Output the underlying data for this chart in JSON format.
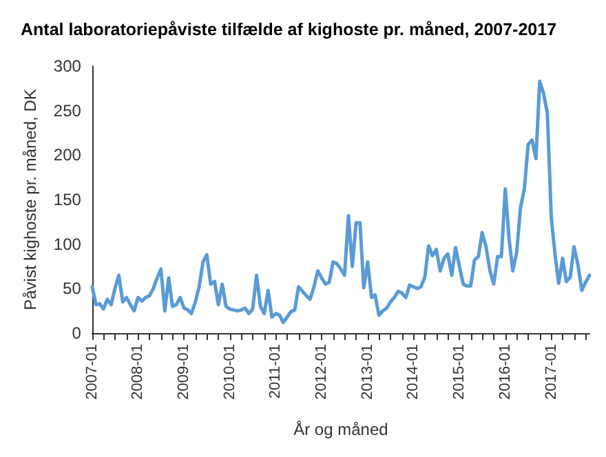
{
  "chart_data": {
    "type": "line",
    "title": "Antal laboratoriepåviste tilfælde af kighoste pr. måned, 2007-2017",
    "xlabel": "År og måned",
    "ylabel": "Påvist kighoste pr. måned, DK",
    "x": [
      "2007-01",
      "2007-02",
      "2007-03",
      "2007-04",
      "2007-05",
      "2007-06",
      "2007-07",
      "2007-08",
      "2007-09",
      "2007-10",
      "2007-11",
      "2007-12",
      "2008-01",
      "2008-02",
      "2008-03",
      "2008-04",
      "2008-05",
      "2008-06",
      "2008-07",
      "2008-08",
      "2008-09",
      "2008-10",
      "2008-11",
      "2008-12",
      "2009-01",
      "2009-02",
      "2009-03",
      "2009-04",
      "2009-05",
      "2009-06",
      "2009-07",
      "2009-08",
      "2009-09",
      "2009-10",
      "2009-11",
      "2009-12",
      "2010-01",
      "2010-02",
      "2010-03",
      "2010-04",
      "2010-05",
      "2010-06",
      "2010-07",
      "2010-08",
      "2010-09",
      "2010-10",
      "2010-11",
      "2010-12",
      "2011-01",
      "2011-02",
      "2011-03",
      "2011-04",
      "2011-05",
      "2011-06",
      "2011-07",
      "2011-08",
      "2011-09",
      "2011-10",
      "2011-11",
      "2011-12",
      "2012-01",
      "2012-02",
      "2012-03",
      "2012-04",
      "2012-05",
      "2012-06",
      "2012-07",
      "2012-08",
      "2012-09",
      "2012-10",
      "2012-11",
      "2012-12",
      "2013-01",
      "2013-02",
      "2013-03",
      "2013-04",
      "2013-05",
      "2013-06",
      "2013-07",
      "2013-08",
      "2013-09",
      "2013-10",
      "2013-11",
      "2013-12",
      "2014-01",
      "2014-02",
      "2014-03",
      "2014-04",
      "2014-05",
      "2014-06",
      "2014-07",
      "2014-08",
      "2014-09",
      "2014-10",
      "2014-11",
      "2014-12",
      "2015-01",
      "2015-02",
      "2015-03",
      "2015-04",
      "2015-05",
      "2015-06",
      "2015-07",
      "2015-08",
      "2015-09",
      "2015-10",
      "2015-11",
      "2015-12",
      "2016-01",
      "2016-02",
      "2016-03",
      "2016-04",
      "2016-05",
      "2016-06",
      "2016-07",
      "2016-08",
      "2016-09",
      "2016-10",
      "2016-11",
      "2016-12",
      "2017-01",
      "2017-02",
      "2017-03",
      "2017-04",
      "2017-05",
      "2017-06",
      "2017-07",
      "2017-08",
      "2017-09",
      "2017-10",
      "2017-11"
    ],
    "series": [
      {
        "color": "#5b9bd5",
        "values": [
          52,
          32,
          33,
          27,
          38,
          32,
          50,
          65,
          35,
          40,
          32,
          25,
          40,
          36,
          40,
          42,
          50,
          62,
          72,
          25,
          62,
          30,
          32,
          40,
          28,
          26,
          22,
          35,
          52,
          80,
          88,
          55,
          58,
          32,
          55,
          30,
          27,
          26,
          25,
          26,
          28,
          22,
          27,
          65,
          30,
          22,
          48,
          18,
          22,
          20,
          12,
          18,
          24,
          26,
          52,
          47,
          42,
          38,
          52,
          70,
          62,
          55,
          57,
          80,
          78,
          72,
          65,
          132,
          75,
          124,
          124,
          51,
          80,
          40,
          43,
          20,
          25,
          28,
          35,
          40,
          47,
          45,
          40,
          54,
          52,
          50,
          52,
          63,
          98,
          87,
          94,
          70,
          84,
          89,
          65,
          96,
          75,
          55,
          53,
          53,
          82,
          86,
          113,
          97,
          70,
          55,
          86,
          86,
          162,
          105,
          70,
          91,
          141,
          162,
          212,
          217,
          196,
          283,
          269,
          247,
          130,
          87,
          56,
          84,
          58,
          63,
          97,
          77,
          48,
          57,
          65
        ]
      }
    ],
    "xlim": [
      "2007-01",
      "2017-11"
    ],
    "xticks": [
      {
        "value": "2007-01",
        "label": "2007-01"
      },
      {
        "value": "2007-04",
        "label": null
      },
      {
        "value": "2007-07",
        "label": null
      },
      {
        "value": "2007-10",
        "label": null
      },
      {
        "value": "2008-01",
        "label": "2008-01"
      },
      {
        "value": "2008-04",
        "label": null
      },
      {
        "value": "2008-07",
        "label": null
      },
      {
        "value": "2008-10",
        "label": null
      },
      {
        "value": "2009-01",
        "label": "2009-01"
      },
      {
        "value": "2009-04",
        "label": null
      },
      {
        "value": "2009-07",
        "label": null
      },
      {
        "value": "2009-10",
        "label": null
      },
      {
        "value": "2010-01",
        "label": "2010-01"
      },
      {
        "value": "2010-04",
        "label": null
      },
      {
        "value": "2010-07",
        "label": null
      },
      {
        "value": "2010-10",
        "label": null
      },
      {
        "value": "2011-01",
        "label": "2011-01"
      },
      {
        "value": "2011-04",
        "label": null
      },
      {
        "value": "2011-07",
        "label": null
      },
      {
        "value": "2011-10",
        "label": null
      },
      {
        "value": "2012-01",
        "label": "2012-01"
      },
      {
        "value": "2012-04",
        "label": null
      },
      {
        "value": "2012-07",
        "label": null
      },
      {
        "value": "2012-10",
        "label": null
      },
      {
        "value": "2013-01",
        "label": "2013-01"
      },
      {
        "value": "2013-04",
        "label": null
      },
      {
        "value": "2013-07",
        "label": null
      },
      {
        "value": "2013-10",
        "label": null
      },
      {
        "value": "2014-01",
        "label": "2014-01"
      },
      {
        "value": "2014-04",
        "label": null
      },
      {
        "value": "2014-07",
        "label": null
      },
      {
        "value": "2014-10",
        "label": null
      },
      {
        "value": "2015-01",
        "label": "2015-01"
      },
      {
        "value": "2015-04",
        "label": null
      },
      {
        "value": "2015-07",
        "label": null
      },
      {
        "value": "2015-10",
        "label": null
      },
      {
        "value": "2016-01",
        "label": "2016-01"
      },
      {
        "value": "2016-04",
        "label": null
      },
      {
        "value": "2016-07",
        "label": null
      },
      {
        "value": "2016-10",
        "label": null
      },
      {
        "value": "2017-01",
        "label": "2017-01"
      },
      {
        "value": "2017-04",
        "label": null
      },
      {
        "value": "2017-07",
        "label": null
      },
      {
        "value": "2017-10",
        "label": null
      }
    ],
    "ylim": [
      0,
      300
    ],
    "yticks": [
      0,
      50,
      100,
      150,
      200,
      250,
      300
    ],
    "grid": false,
    "marker": "none",
    "line_style": "solid"
  }
}
